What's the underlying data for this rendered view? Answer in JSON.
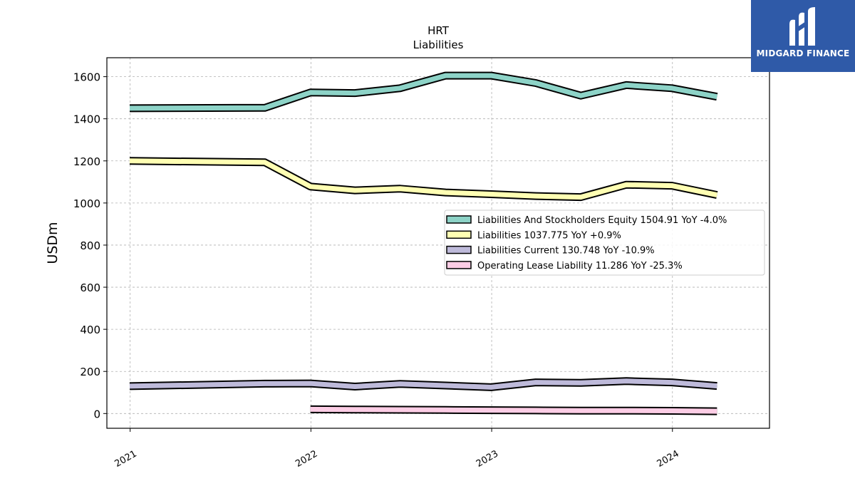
{
  "brand": {
    "name": "MIDGARD FINANCE",
    "bg": "#2f5aa8"
  },
  "chart_data": {
    "type": "line",
    "title": "HRT",
    "subtitle": "Liabilities",
    "xlabel": "",
    "ylabel": "USDm",
    "ylim": [
      -70,
      1690
    ],
    "yticks": [
      0,
      200,
      400,
      600,
      800,
      1000,
      1200,
      1400,
      1600
    ],
    "xticks": [
      "2021",
      "2022",
      "2023",
      "2024"
    ],
    "grid": true,
    "legend_position": "center-right",
    "series": [
      {
        "name": "Liabilities And Stockholders Equity  1504.91 YoY -4.0%",
        "color": "#8dd3c7",
        "x": [
          "2020-12-31",
          "2021-09-30",
          "2021-12-31",
          "2022-03-31",
          "2022-06-30",
          "2022-09-30",
          "2022-12-31",
          "2023-03-31",
          "2023-06-30",
          "2023-09-30",
          "2023-12-31",
          "2024-03-31"
        ],
        "y": [
          1450,
          1452,
          1525,
          1522,
          1545,
          1605,
          1605,
          1570,
          1510,
          1560,
          1545,
          1505
        ]
      },
      {
        "name": "Liabilities  1037.775 YoY +0.9%",
        "color": "#ffffb3",
        "x": [
          "2020-12-31",
          "2021-09-30",
          "2021-12-31",
          "2022-03-31",
          "2022-06-30",
          "2022-09-30",
          "2022-12-31",
          "2023-03-31",
          "2023-06-30",
          "2023-09-30",
          "2023-12-31",
          "2024-03-31"
        ],
        "y": [
          1200,
          1193,
          1078,
          1060,
          1068,
          1050,
          1042,
          1033,
          1028,
          1087,
          1082,
          1038
        ]
      },
      {
        "name": "Liabilities Current  130.748 YoY -10.9%",
        "color": "#bebada",
        "x": [
          "2020-12-31",
          "2021-09-30",
          "2021-12-31",
          "2022-03-31",
          "2022-06-30",
          "2022-09-30",
          "2022-12-31",
          "2023-03-31",
          "2023-06-30",
          "2023-09-30",
          "2023-12-31",
          "2024-03-31"
        ],
        "y": [
          130,
          142,
          143,
          128,
          141,
          133,
          125,
          148,
          146,
          154,
          148,
          131
        ]
      },
      {
        "name": "Operating Lease Liability  11.286 YoY -25.3%",
        "color": "#fccde5",
        "x": [
          "2021-12-31",
          "2022-03-31",
          "2022-06-30",
          "2022-09-30",
          "2022-12-31",
          "2023-03-31",
          "2023-06-30",
          "2023-09-30",
          "2023-12-31",
          "2024-03-31"
        ],
        "y": [
          20,
          19,
          18,
          17,
          16,
          15,
          14,
          14,
          13,
          11
        ]
      }
    ]
  }
}
